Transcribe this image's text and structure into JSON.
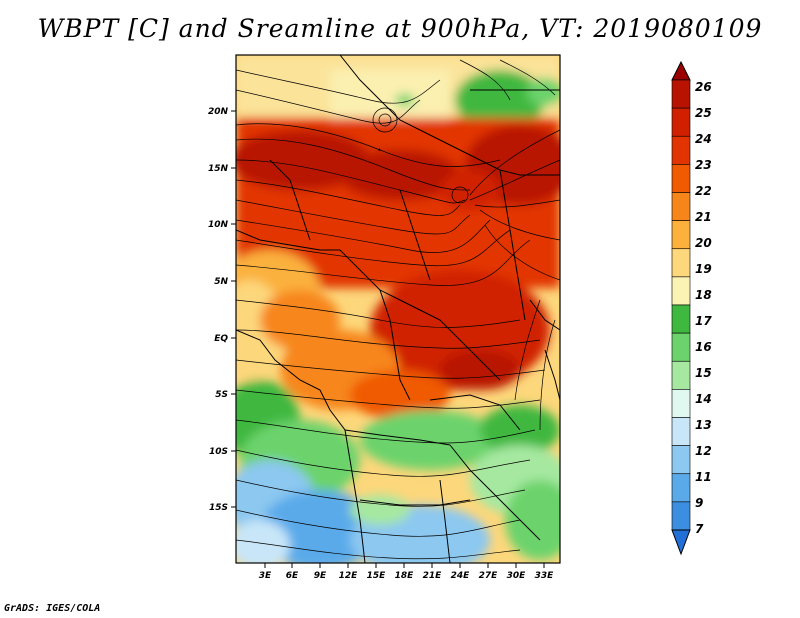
{
  "title": "WBPT [C] and Sreamline at 900hPa, VT: 2019080109",
  "footer": "GrADS: IGES/COLA",
  "map": {
    "lat_ticks": [
      "20N",
      "15N",
      "10N",
      "5N",
      "EQ",
      "5S",
      "10S",
      "15S"
    ],
    "lon_ticks": [
      "3E",
      "6E",
      "9E",
      "12E",
      "15E",
      "18E",
      "21E",
      "24E",
      "27E",
      "30E",
      "33E"
    ]
  },
  "colorbar": {
    "labels": [
      "26",
      "25",
      "24",
      "23",
      "22",
      "21",
      "20",
      "19",
      "18",
      "17",
      "16",
      "15",
      "14",
      "13",
      "12",
      "11",
      "9",
      "7"
    ],
    "colors": [
      "#9b0000",
      "#b81300",
      "#d02000",
      "#e23400",
      "#f05a00",
      "#f7861a",
      "#fbb13c",
      "#fdd77b",
      "#fbf3b3",
      "#3fb83f",
      "#6cd36c",
      "#a6e8a0",
      "#e0f8f0",
      "#c8e6f8",
      "#8cc8f0",
      "#5aaaea",
      "#3b8ee0",
      "#2070d8"
    ]
  },
  "colors": {
    "background": "#ffffff",
    "text": "#000000"
  }
}
